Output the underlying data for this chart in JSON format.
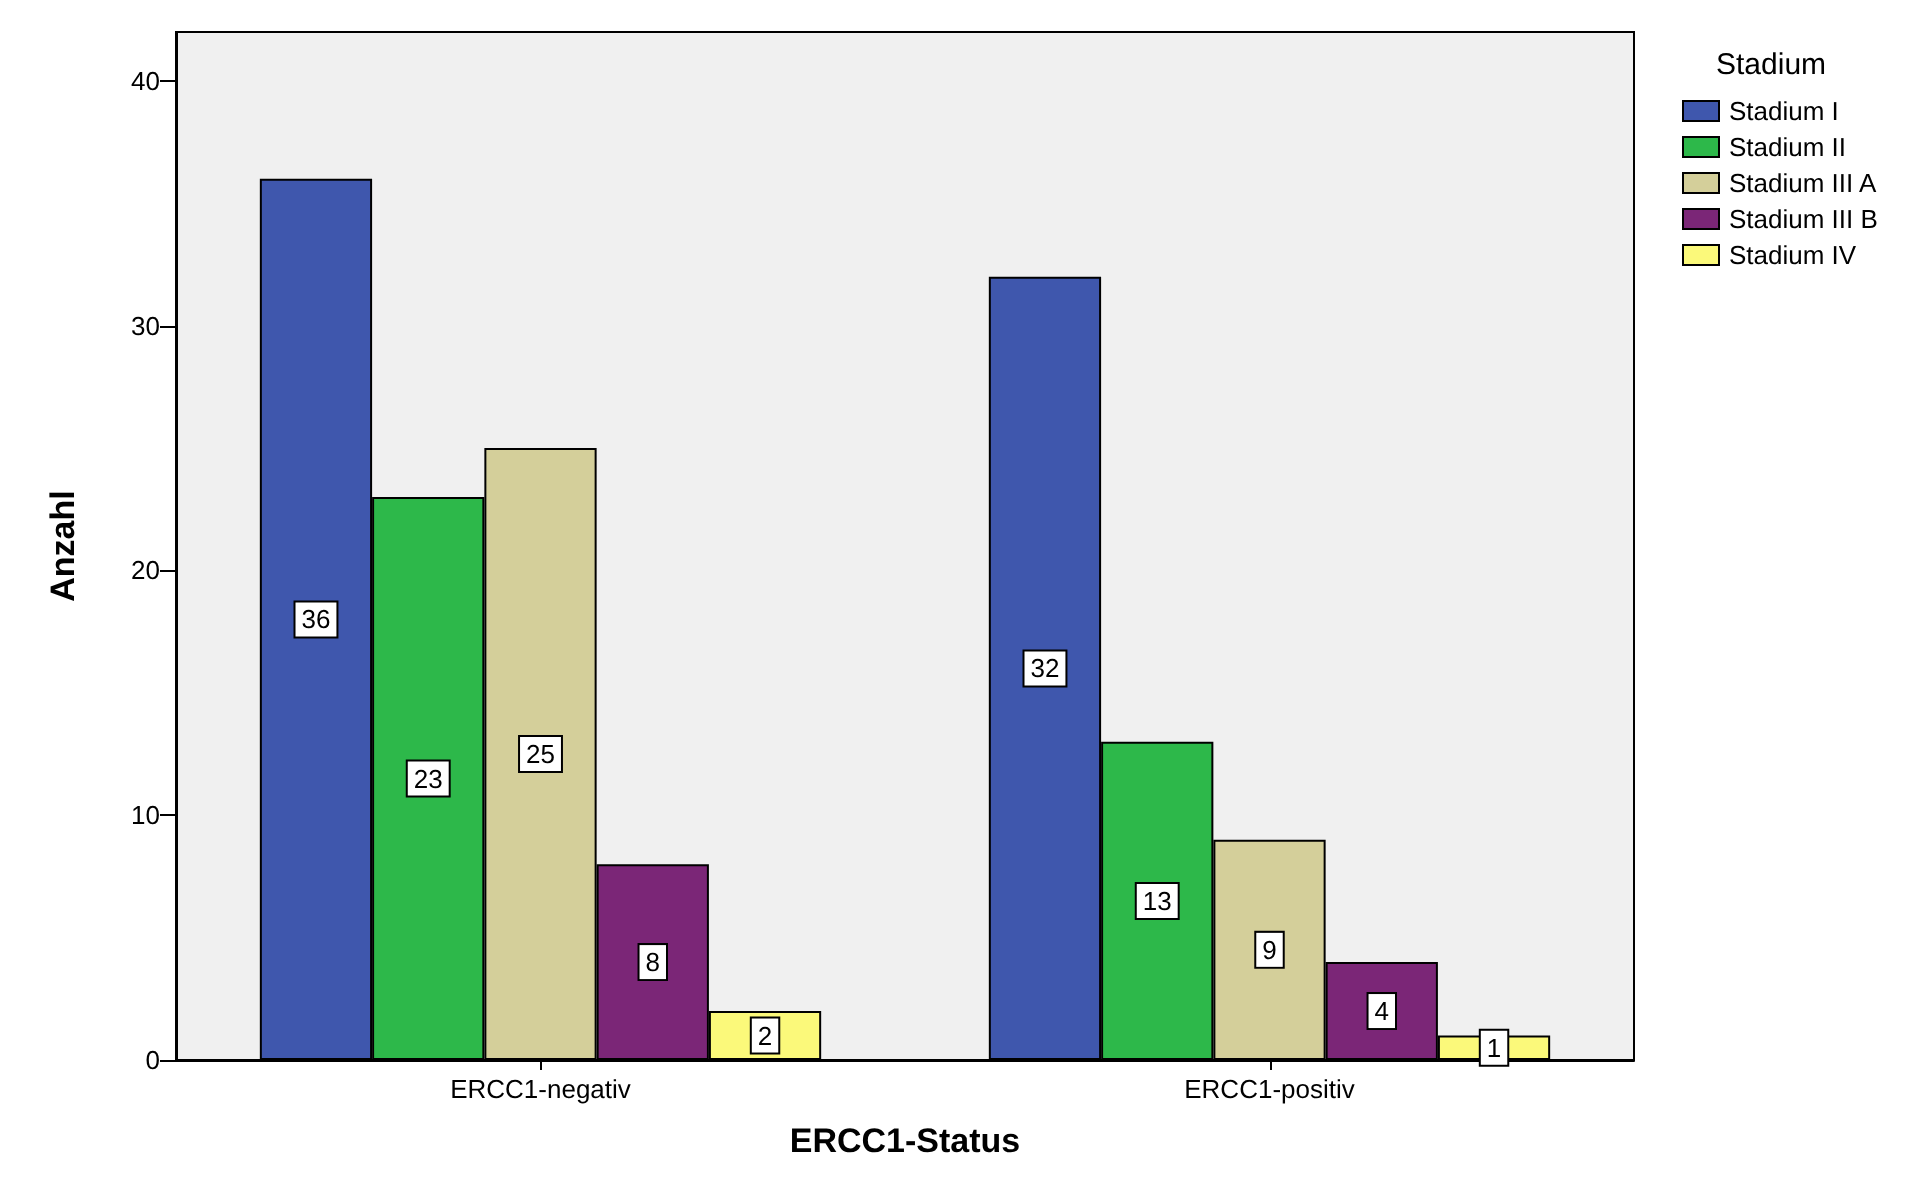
{
  "chart_data": {
    "type": "bar",
    "xlabel": "ERCC1-Status",
    "ylabel": "Anzahl",
    "legend_title": "Stadium",
    "categories": [
      "ERCC1-negativ",
      "ERCC1-positiv"
    ],
    "series": [
      {
        "name": "Stadium I",
        "color": "#3f57ad",
        "values": [
          36,
          32
        ]
      },
      {
        "name": "Stadium II",
        "color": "#2db84a",
        "values": [
          23,
          13
        ]
      },
      {
        "name": "Stadium III A",
        "color": "#d4cf9a",
        "values": [
          25,
          9
        ]
      },
      {
        "name": "Stadium III B",
        "color": "#7b2677",
        "values": [
          8,
          4
        ]
      },
      {
        "name": "Stadium IV",
        "color": "#fbf97a",
        "values": [
          2,
          1
        ]
      }
    ],
    "ylim": [
      0,
      42
    ],
    "yticks": [
      0,
      10,
      20,
      30,
      40
    ],
    "grid": false,
    "legend": "top right",
    "data_labels": true
  }
}
